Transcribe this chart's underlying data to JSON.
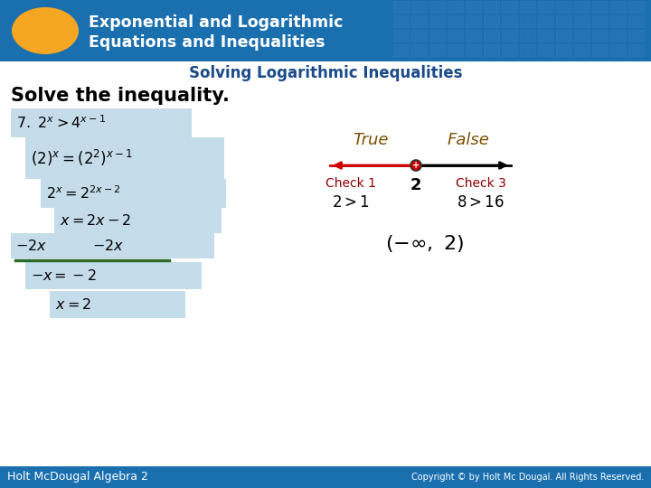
{
  "header_bg_color": "#1a6faf",
  "header_text_color": "#ffffff",
  "subheader_text": "Solving Logarithmic Inequalities",
  "subheader_text_color": "#1a4a8a",
  "oval_color": "#f5a623",
  "body_bg": "#ffffff",
  "section_title": "Solve the inequality.",
  "step_bg": "#c5dcea",
  "divider_color": "#2d6b2d",
  "true_color": "#7b5000",
  "false_color": "#7b5000",
  "arrow_left_color": "#cc0000",
  "check_color": "#8b0000",
  "footer_bg": "#1a6faf",
  "footer_left": "Holt McDougal Algebra 2",
  "footer_right": "Copyright © by Holt Mc Dougal. All Rights Reserved.",
  "footer_text_color": "#ffffff"
}
